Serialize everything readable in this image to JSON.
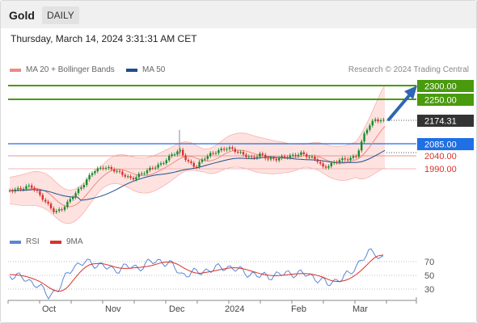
{
  "header": {
    "title": "Gold",
    "timeframe": "DAILY"
  },
  "timestamp": "Thursday, March 14, 2024 3:31:31 AM CET",
  "legend": {
    "bollinger": {
      "label": "MA 20 + Bollinger Bands",
      "color": "#f08a84"
    },
    "ma50": {
      "label": "MA 50",
      "color": "#1f4e8c"
    },
    "credit": "Research © 2024 Trading Central"
  },
  "price_levels": {
    "r2": {
      "label": "2300.00",
      "value": 2300,
      "color": "#4a9a0e"
    },
    "r1": {
      "label": "2250.00",
      "value": 2250,
      "color": "#4a9a0e"
    },
    "last": {
      "label": "2174.31",
      "value": 2174.31,
      "color": "#333333"
    },
    "pivot": {
      "label": "2085.00",
      "value": 2085,
      "color": "#1f6fe5"
    },
    "s1": {
      "label": "2040.00",
      "value": 2040,
      "color": "#d9322b"
    },
    "s2": {
      "label": "1990.00",
      "value": 1990,
      "color": "#d9322b"
    }
  },
  "rsi_legend": {
    "rsi": {
      "label": "RSI",
      "color": "#5b86d6"
    },
    "ma9": {
      "label": "9MA",
      "color": "#d9322b"
    }
  },
  "rsi_ticks": [
    "70",
    "50",
    "30"
  ],
  "x_axis_labels": [
    "Oct",
    "Nov",
    "Dec",
    "2024",
    "Feb",
    "Mar"
  ],
  "colors": {
    "up": "#1a8a28",
    "down": "#d9322b",
    "arrow": "#2f66b3",
    "band_fill": "#fde2e0"
  }
}
